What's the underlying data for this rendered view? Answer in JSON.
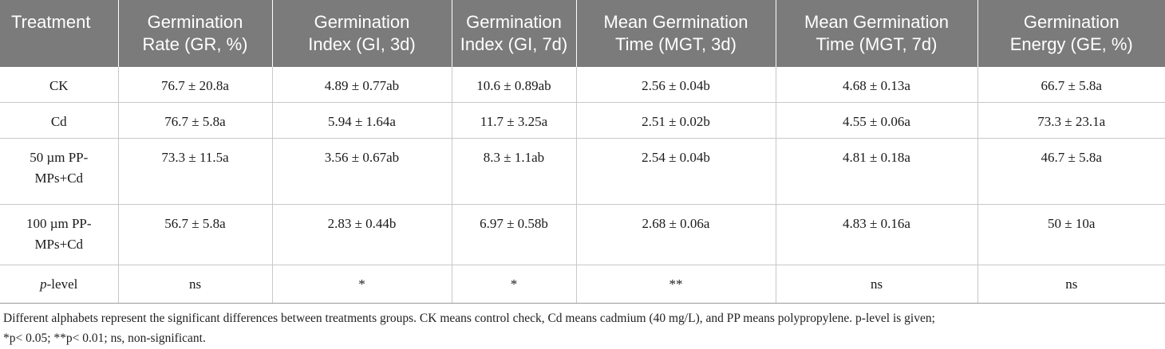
{
  "table": {
    "headers": [
      [
        "Treatment"
      ],
      [
        "Germination",
        "Rate (GR, %)"
      ],
      [
        "Germination",
        "Index (GI, 3d)"
      ],
      [
        "Germination",
        "Index (GI, 7d)"
      ],
      [
        "Mean Germination",
        "Time (MGT, 3d)"
      ],
      [
        "Mean Germination",
        "Time (MGT, 7d)"
      ],
      [
        "Germination",
        "Energy (GE, %)"
      ]
    ],
    "rows": [
      {
        "treatment": [
          "CK"
        ],
        "cells": [
          "76.7 ± 20.8a",
          "4.89 ± 0.77ab",
          "10.6 ± 0.89ab",
          "2.56 ± 0.04b",
          "4.68 ± 0.13a",
          "66.7 ± 5.8a"
        ]
      },
      {
        "treatment": [
          "Cd"
        ],
        "cells": [
          "76.7 ± 5.8a",
          "5.94 ± 1.64a",
          "11.7 ± 3.25a",
          "2.51 ± 0.02b",
          "4.55 ± 0.06a",
          "73.3 ± 23.1a"
        ]
      },
      {
        "treatment": [
          "50 µm PP-",
          "MPs+Cd"
        ],
        "cells": [
          "73.3 ± 11.5a",
          "3.56 ± 0.67ab",
          "8.3 ± 1.1ab",
          "2.54 ± 0.04b",
          "4.81 ± 0.18a",
          "46.7 ± 5.8a"
        ]
      },
      {
        "treatment": [
          "100 µm PP-",
          "MPs+Cd"
        ],
        "cells": [
          "56.7 ± 5.8a",
          "2.83 ± 0.44b",
          "6.97 ± 0.58b",
          "2.68 ± 0.06a",
          "4.83 ± 0.16a",
          "50 ± 10a"
        ]
      },
      {
        "treatment_italic": "p",
        "treatment_rest": "-level",
        "cells": [
          "ns",
          "*",
          "*",
          "**",
          "ns",
          "ns"
        ]
      }
    ]
  },
  "footnote": {
    "line1": "Different alphabets represent the significant differences between treatments groups. CK means control check, Cd means cadmium (40 mg/L), and PP means polypropylene. p-level is given;",
    "line2": "*p< 0.05; **p< 0.01; ns, non-significant."
  }
}
